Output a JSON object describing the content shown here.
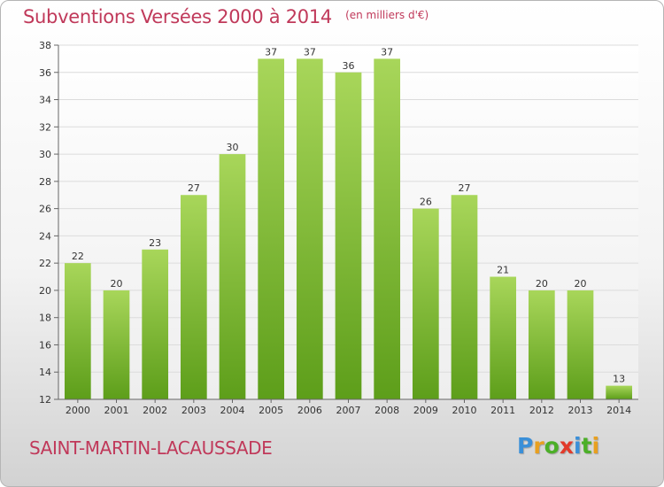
{
  "header": {
    "title": "Subventions Versées 2000 à 2014",
    "subtitle": "(en milliers d'€)"
  },
  "footer": {
    "commune": "SAINT-MARTIN-LACAUSSADE",
    "logo_text": "Proxiti",
    "logo_colors": [
      "#3a8fd8",
      "#e8a020",
      "#4caf28",
      "#e23a2a",
      "#3a8fd8",
      "#4caf28",
      "#e8a020"
    ]
  },
  "chart_data": {
    "type": "bar",
    "categories": [
      "2000",
      "2001",
      "2002",
      "2003",
      "2004",
      "2005",
      "2006",
      "2007",
      "2008",
      "2009",
      "2010",
      "2011",
      "2012",
      "2013",
      "2014"
    ],
    "values": [
      22,
      20,
      23,
      27,
      30,
      37,
      37,
      36,
      37,
      26,
      27,
      21,
      20,
      20,
      13
    ],
    "title": "Subventions Versées 2000 à 2014",
    "subtitle": "(en milliers d'€)",
    "xlabel": "",
    "ylabel": "",
    "ylim": [
      12,
      38
    ],
    "yticks": [
      12,
      14,
      16,
      18,
      20,
      22,
      24,
      26,
      28,
      30,
      32,
      34,
      36,
      38
    ],
    "grid": true,
    "legend": "none",
    "bar_color_light": "#a8d65a",
    "bar_color_dark": "#5d9e1a"
  }
}
